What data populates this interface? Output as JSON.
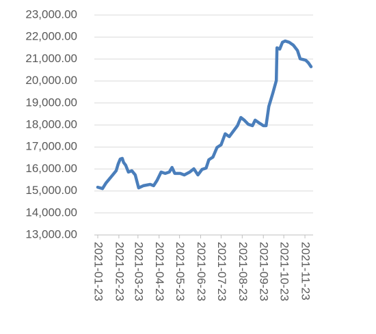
{
  "chart_data": {
    "type": "line",
    "color": "#4a7ebb",
    "grid": true,
    "x": [
      "2021-01-23",
      "2021-01-30",
      "2021-02-04",
      "2021-02-14",
      "2021-02-19",
      "2021-02-22",
      "2021-02-25",
      "2021-02-28",
      "2021-03-02",
      "2021-03-05",
      "2021-03-09",
      "2021-03-14",
      "2021-03-19",
      "2021-03-24",
      "2021-03-31",
      "2021-04-10",
      "2021-04-15",
      "2021-04-20",
      "2021-04-26",
      "2021-05-02",
      "2021-05-08",
      "2021-05-12",
      "2021-05-16",
      "2021-05-24",
      "2021-05-30",
      "2021-06-07",
      "2021-06-13",
      "2021-06-19",
      "2021-06-25",
      "2021-07-01",
      "2021-07-05",
      "2021-07-11",
      "2021-07-17",
      "2021-07-23",
      "2021-07-29",
      "2021-08-04",
      "2021-08-10",
      "2021-08-16",
      "2021-08-21",
      "2021-08-26",
      "2021-09-01",
      "2021-09-07",
      "2021-09-11",
      "2021-09-17",
      "2021-09-23",
      "2021-09-27",
      "2021-10-01",
      "2021-10-07",
      "2021-10-12",
      "2021-10-13",
      "2021-10-17",
      "2021-10-21",
      "2021-10-25",
      "2021-10-31",
      "2021-11-06",
      "2021-11-12",
      "2021-11-16",
      "2021-11-24",
      "2021-11-28",
      "2021-12-02"
    ],
    "values": [
      15170,
      15110,
      15360,
      15730,
      15920,
      16230,
      16450,
      16480,
      16290,
      16170,
      15860,
      15920,
      15730,
      15140,
      15240,
      15300,
      15240,
      15480,
      15860,
      15800,
      15860,
      16070,
      15800,
      15800,
      15730,
      15860,
      16010,
      15730,
      15980,
      16040,
      16420,
      16540,
      16980,
      17100,
      17600,
      17470,
      17720,
      17970,
      18340,
      18220,
      18030,
      17970,
      18220,
      18090,
      17970,
      17970,
      18840,
      19460,
      20020,
      21510,
      21450,
      21760,
      21820,
      21760,
      21630,
      21390,
      21010,
      20950,
      20830,
      20650
    ],
    "xlim": [
      "2021-01-18",
      "2021-12-05"
    ],
    "xticks": [
      "2021-01-23",
      "2021-02-23",
      "2021-03-23",
      "2021-04-23",
      "2021-05-23",
      "2021-06-23",
      "2021-07-23",
      "2021-08-23",
      "2021-09-23",
      "2021-10-23",
      "2021-11-23"
    ],
    "ylim": [
      13000,
      23000
    ],
    "yticks": [
      {
        "value": 13000,
        "label": "13,000.00"
      },
      {
        "value": 14000,
        "label": "14,000.00"
      },
      {
        "value": 15000,
        "label": "15,000.00"
      },
      {
        "value": 16000,
        "label": "16,000.00"
      },
      {
        "value": 17000,
        "label": "17,000.00"
      },
      {
        "value": 18000,
        "label": "18,000.00"
      },
      {
        "value": 19000,
        "label": "19,000.00"
      },
      {
        "value": 20000,
        "label": "20,000.00"
      },
      {
        "value": 21000,
        "label": "21,000.00"
      },
      {
        "value": 22000,
        "label": "22,000.00"
      },
      {
        "value": 23000,
        "label": "23,000.00"
      }
    ]
  }
}
